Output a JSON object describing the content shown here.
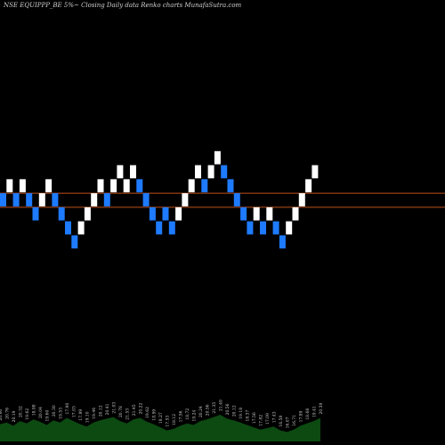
{
  "header": {
    "title": "NSE EQUIPPP_BE 5%~  Closing Daily data  Renko  charts MunafaSutra.com"
  },
  "colors": {
    "background": "#000000",
    "up_brick": "#ffffff",
    "down_brick": "#1e7bff",
    "reference_lines": "#c0501a",
    "volume_fill": "#0c4a12",
    "volume_labels": "#cfcfcf"
  },
  "chart_data": {
    "type": "renko",
    "brick_size_percent": 5,
    "y_range_levels": [
      0,
      26
    ],
    "reference_line_levels": [
      12.5,
      13.5
    ],
    "bricks": [
      {
        "level": 13,
        "dir": "down"
      },
      {
        "level": 14,
        "dir": "up"
      },
      {
        "level": 13,
        "dir": "down"
      },
      {
        "level": 14,
        "dir": "up"
      },
      {
        "level": 13,
        "dir": "down"
      },
      {
        "level": 12,
        "dir": "down"
      },
      {
        "level": 13,
        "dir": "up"
      },
      {
        "level": 14,
        "dir": "up"
      },
      {
        "level": 13,
        "dir": "down"
      },
      {
        "level": 12,
        "dir": "down"
      },
      {
        "level": 11,
        "dir": "down"
      },
      {
        "level": 10,
        "dir": "down"
      },
      {
        "level": 11,
        "dir": "up"
      },
      {
        "level": 12,
        "dir": "up"
      },
      {
        "level": 13,
        "dir": "up"
      },
      {
        "level": 14,
        "dir": "up"
      },
      {
        "level": 13,
        "dir": "down"
      },
      {
        "level": 14,
        "dir": "up"
      },
      {
        "level": 15,
        "dir": "up"
      },
      {
        "level": 14,
        "dir": "up"
      },
      {
        "level": 15,
        "dir": "up"
      },
      {
        "level": 14,
        "dir": "down"
      },
      {
        "level": 13,
        "dir": "down"
      },
      {
        "level": 12,
        "dir": "down"
      },
      {
        "level": 11,
        "dir": "down"
      },
      {
        "level": 12,
        "dir": "down"
      },
      {
        "level": 11,
        "dir": "down"
      },
      {
        "level": 12,
        "dir": "up"
      },
      {
        "level": 13,
        "dir": "up"
      },
      {
        "level": 14,
        "dir": "up"
      },
      {
        "level": 15,
        "dir": "up"
      },
      {
        "level": 14,
        "dir": "down"
      },
      {
        "level": 15,
        "dir": "up"
      },
      {
        "level": 16,
        "dir": "up"
      },
      {
        "level": 15,
        "dir": "down"
      },
      {
        "level": 14,
        "dir": "down"
      },
      {
        "level": 13,
        "dir": "down"
      },
      {
        "level": 12,
        "dir": "down"
      },
      {
        "level": 11,
        "dir": "down"
      },
      {
        "level": 12,
        "dir": "up"
      },
      {
        "level": 11,
        "dir": "down"
      },
      {
        "level": 12,
        "dir": "up"
      },
      {
        "level": 11,
        "dir": "down"
      },
      {
        "level": 10,
        "dir": "down"
      },
      {
        "level": 11,
        "dir": "up"
      },
      {
        "level": 12,
        "dir": "up"
      },
      {
        "level": 13,
        "dir": "up"
      },
      {
        "level": 14,
        "dir": "up"
      },
      {
        "level": 15,
        "dir": "up"
      }
    ],
    "volume": {
      "values": [
        22,
        24,
        20,
        26,
        23,
        28,
        25,
        21,
        27,
        24,
        30,
        26,
        22,
        19,
        24,
        27,
        29,
        31,
        26,
        23,
        28,
        30,
        25,
        22,
        18,
        14,
        16,
        20,
        23,
        21,
        26,
        28,
        31,
        34,
        29,
        27,
        24,
        21,
        18,
        15,
        17,
        19,
        14,
        12,
        15,
        20,
        23,
        26,
        30
      ],
      "labels": [
        "20.60",
        "20.76",
        "20.19",
        "20.32",
        "19.62",
        "18.98",
        "20.04",
        "19.60",
        "20.30",
        "19.53",
        "17.90",
        "17.03",
        "17.89",
        "19.10",
        "19.46",
        "20.12",
        "20.41",
        "21.03",
        "20.78",
        "21.53",
        "21.45",
        "20.22",
        "19.62",
        "18.99",
        "18.27",
        "17.53",
        "18.12",
        "17.56",
        "18.72",
        "19.24",
        "20.24",
        "20.56",
        "21.35",
        "21.49",
        "20.56",
        "20.12",
        "19.18",
        "18.37",
        "17.56",
        "17.82",
        "17.09",
        "17.43",
        "16.58",
        "16.07",
        "16.71",
        "17.89",
        "18.68",
        "19.41",
        "20.39"
      ]
    }
  }
}
